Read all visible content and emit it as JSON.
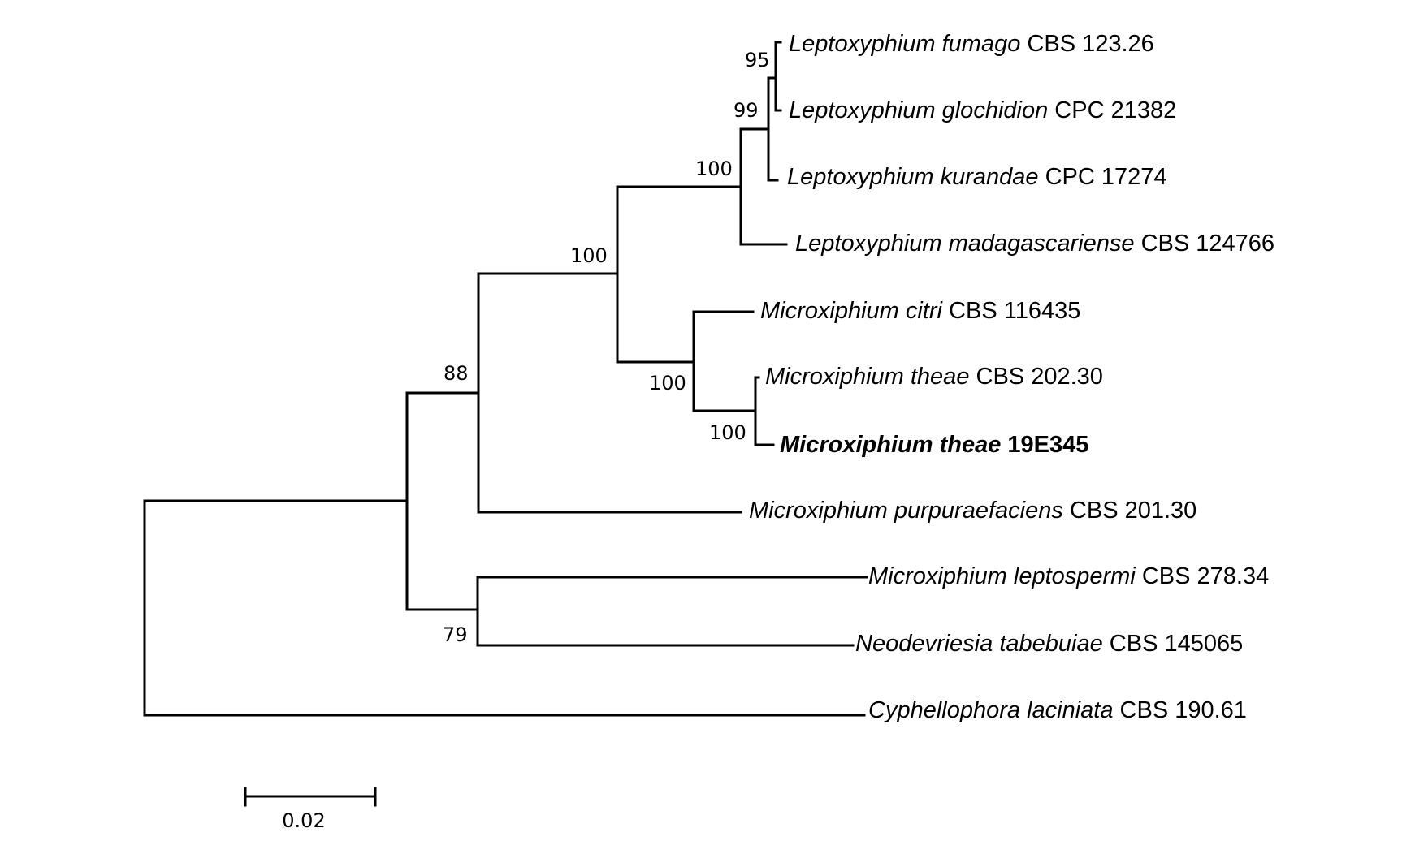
{
  "tree": {
    "taxa": [
      {
        "genus_species": "Leptoxyphium fumago",
        "strain": "CBS 123.26",
        "bold": false
      },
      {
        "genus_species": "Leptoxyphium glochidion",
        "strain": "CPC 21382",
        "bold": false
      },
      {
        "genus_species": "Leptoxyphium kurandae",
        "strain": "CPC 17274",
        "bold": false
      },
      {
        "genus_species": "Leptoxyphium madagascariense",
        "strain": "CBS 124766",
        "bold": false
      },
      {
        "genus_species": "Microxiphium citri",
        "strain": "CBS 116435",
        "bold": false
      },
      {
        "genus_species": "Microxiphium theae",
        "strain": "CBS 202.30",
        "bold": false
      },
      {
        "genus_species": "Microxiphium theae",
        "strain": "19E345",
        "bold": true
      },
      {
        "genus_species": "Microxiphium purpuraefaciens",
        "strain": "CBS 201.30",
        "bold": false
      },
      {
        "genus_species": "Microxiphium leptospermi",
        "strain": "CBS 278.34",
        "bold": false
      },
      {
        "genus_species": "Neodevriesia tabebuiae",
        "strain": "CBS 145065",
        "bold": false
      },
      {
        "genus_species": "Cyphellophora laciniata",
        "strain": "CBS 190.61",
        "bold": false
      }
    ],
    "support_values": [
      "95",
      "99",
      "100",
      "100",
      "100",
      "100",
      "88",
      "79"
    ],
    "scale_bar": {
      "label": "0.02",
      "length": 0.02
    }
  }
}
